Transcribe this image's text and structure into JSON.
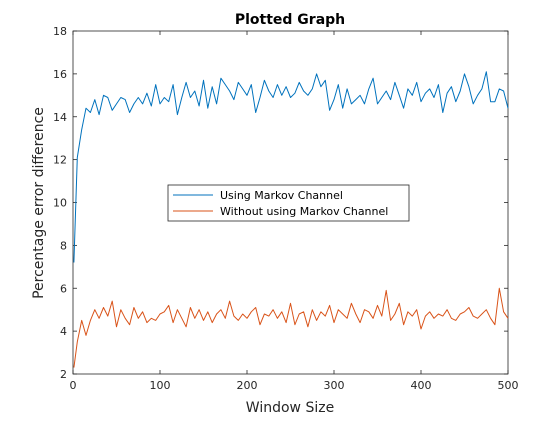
{
  "colors": {
    "series1": "#0072BD",
    "series2": "#D95319",
    "axis": "#262626",
    "background": "#ffffff"
  },
  "chart_data": {
    "type": "line",
    "title": "Plotted Graph",
    "xlabel": "Window Size",
    "ylabel": "Percentage error difference",
    "xlim": [
      0,
      500
    ],
    "ylim": [
      2,
      18
    ],
    "xticks": [
      0,
      100,
      200,
      300,
      400,
      500
    ],
    "yticks": [
      2,
      4,
      6,
      8,
      10,
      12,
      14,
      16,
      18
    ],
    "grid": false,
    "legend_position": "center",
    "x": [
      1,
      5,
      10,
      15,
      20,
      25,
      30,
      35,
      40,
      45,
      50,
      55,
      60,
      65,
      70,
      75,
      80,
      85,
      90,
      95,
      100,
      105,
      110,
      115,
      120,
      125,
      130,
      135,
      140,
      145,
      150,
      155,
      160,
      165,
      170,
      175,
      180,
      185,
      190,
      195,
      200,
      205,
      210,
      215,
      220,
      225,
      230,
      235,
      240,
      245,
      250,
      255,
      260,
      265,
      270,
      275,
      280,
      285,
      290,
      295,
      300,
      305,
      310,
      315,
      320,
      325,
      330,
      335,
      340,
      345,
      350,
      355,
      360,
      365,
      370,
      375,
      380,
      385,
      390,
      395,
      400,
      405,
      410,
      415,
      420,
      425,
      430,
      435,
      440,
      445,
      450,
      455,
      460,
      465,
      470,
      475,
      480,
      485,
      490,
      495,
      500
    ],
    "series": [
      {
        "name": "Using Markov Channel",
        "values": [
          7.2,
          12.1,
          13.4,
          14.4,
          14.2,
          14.8,
          14.1,
          15.0,
          14.9,
          14.3,
          14.6,
          14.9,
          14.8,
          14.2,
          14.6,
          14.9,
          14.6,
          15.1,
          14.5,
          15.5,
          14.6,
          14.9,
          14.7,
          15.5,
          14.1,
          14.9,
          15.6,
          14.9,
          15.2,
          14.5,
          15.7,
          14.4,
          15.4,
          14.6,
          15.8,
          15.5,
          15.2,
          14.8,
          15.6,
          15.3,
          15.0,
          15.5,
          14.2,
          14.9,
          15.7,
          15.2,
          14.9,
          15.5,
          15.0,
          15.4,
          14.9,
          15.1,
          15.6,
          15.2,
          15.0,
          15.3,
          16.0,
          15.4,
          15.7,
          14.3,
          14.8,
          15.5,
          14.4,
          15.3,
          14.6,
          14.8,
          15.0,
          14.6,
          15.3,
          15.8,
          14.6,
          14.9,
          15.2,
          14.8,
          15.6,
          15.0,
          14.4,
          15.3,
          15.0,
          15.6,
          14.7,
          15.1,
          15.3,
          14.9,
          15.5,
          14.2,
          15.1,
          15.4,
          14.7,
          15.2,
          16.0,
          15.4,
          14.6,
          15.0,
          15.3,
          16.1,
          14.7,
          14.7,
          15.3,
          15.2,
          14.4
        ]
      },
      {
        "name": "Without using Markov Channel",
        "values": [
          2.3,
          3.5,
          4.5,
          3.8,
          4.5,
          5.0,
          4.6,
          5.1,
          4.7,
          5.4,
          4.2,
          5.0,
          4.6,
          4.3,
          5.1,
          4.6,
          4.9,
          4.4,
          4.6,
          4.5,
          4.8,
          4.9,
          5.2,
          4.4,
          5.0,
          4.6,
          4.2,
          5.1,
          4.6,
          5.0,
          4.5,
          4.9,
          4.4,
          4.8,
          5.0,
          4.6,
          5.4,
          4.7,
          4.5,
          4.8,
          4.6,
          4.9,
          5.1,
          4.3,
          4.8,
          4.7,
          5.0,
          4.6,
          4.9,
          4.4,
          5.3,
          4.3,
          4.8,
          4.9,
          4.2,
          5.0,
          4.5,
          4.9,
          4.7,
          5.2,
          4.4,
          5.0,
          4.8,
          4.6,
          5.3,
          4.8,
          4.4,
          5.0,
          4.9,
          4.6,
          5.2,
          4.7,
          5.9,
          4.5,
          4.8,
          5.3,
          4.3,
          4.9,
          4.7,
          5.0,
          4.1,
          4.7,
          4.9,
          4.6,
          4.8,
          4.7,
          5.0,
          4.6,
          4.5,
          4.8,
          4.9,
          5.1,
          4.7,
          4.6,
          4.8,
          5.0,
          4.6,
          4.3,
          6.0,
          4.9,
          4.6
        ]
      }
    ]
  }
}
